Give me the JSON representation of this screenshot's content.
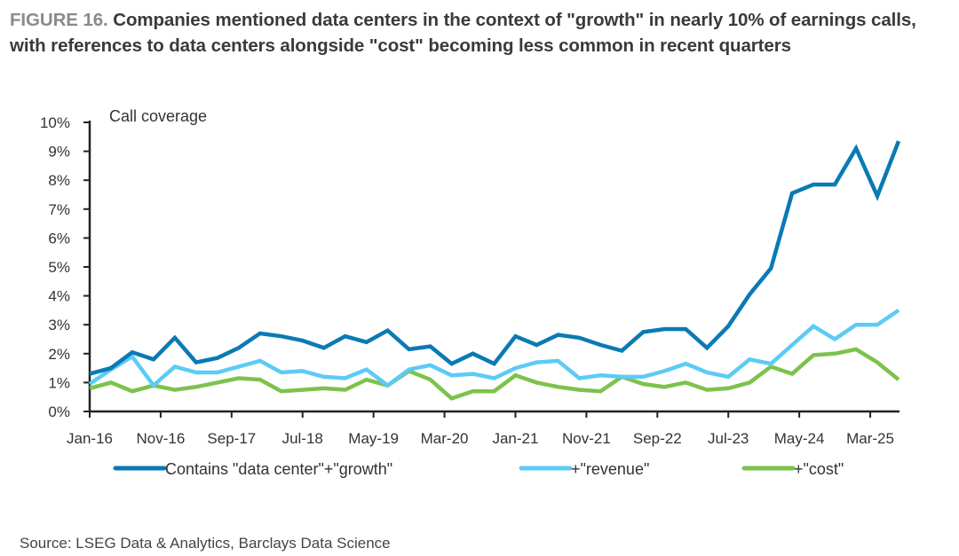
{
  "header": {
    "figure_label": "FIGURE 16.",
    "title": "Companies mentioned data centers in the context of \"growth\" in nearly 10% of earnings calls, with references to data centers alongside \"cost\" becoming less common in recent quarters"
  },
  "footer": {
    "source": "Source: LSEG Data & Analytics, Barclays Data Science"
  },
  "chart_data": {
    "type": "line",
    "title": "Companies mentioned data centers in the context of \"growth\" in nearly 10% of earnings calls, with references to data centers alongside \"cost\" becoming less common in recent quarters",
    "xlabel": "",
    "ylabel": "Call coverage",
    "ylim": [
      0,
      10
    ],
    "y_unit": "%",
    "y_ticks": [
      "0%",
      "1%",
      "2%",
      "3%",
      "4%",
      "5%",
      "6%",
      "7%",
      "8%",
      "9%",
      "10%"
    ],
    "x_tick_labels": [
      "Jan-16",
      "Nov-16",
      "Sep-17",
      "Jul-18",
      "May-19",
      "Mar-20",
      "Jan-21",
      "Nov-21",
      "Sep-22",
      "Jul-23",
      "May-24",
      "Mar-25"
    ],
    "x_frequency": "quarterly",
    "x_start": "Jan-16",
    "x_end": "Jul-25",
    "grid": false,
    "legend_position": "bottom",
    "series": [
      {
        "name": "Contains \"data center\"+\"growth\"",
        "color": "#0a7ab5",
        "values": [
          1.3,
          1.5,
          2.05,
          1.8,
          2.55,
          1.7,
          1.85,
          2.2,
          2.7,
          2.6,
          2.45,
          2.2,
          2.6,
          2.4,
          2.8,
          2.15,
          2.25,
          1.65,
          2.0,
          1.65,
          2.6,
          2.3,
          2.65,
          2.55,
          2.3,
          2.1,
          2.75,
          2.85,
          2.85,
          2.2,
          2.95,
          4.05,
          4.95,
          7.55,
          7.85,
          7.85,
          9.1,
          7.45,
          9.35
        ]
      },
      {
        "name": "+\"revenue\"",
        "color": "#5ccbf5",
        "values": [
          0.95,
          1.45,
          1.9,
          0.9,
          1.55,
          1.35,
          1.35,
          1.55,
          1.75,
          1.35,
          1.4,
          1.2,
          1.15,
          1.45,
          0.9,
          1.45,
          1.6,
          1.25,
          1.3,
          1.15,
          1.5,
          1.7,
          1.75,
          1.15,
          1.25,
          1.2,
          1.2,
          1.4,
          1.65,
          1.35,
          1.2,
          1.8,
          1.65,
          2.3,
          2.95,
          2.5,
          3.0,
          3.0,
          3.5
        ]
      },
      {
        "name": "+\"cost\"",
        "color": "#7dc24b",
        "values": [
          0.8,
          1.0,
          0.7,
          0.9,
          0.75,
          0.85,
          1.0,
          1.15,
          1.1,
          0.7,
          0.75,
          0.8,
          0.75,
          1.1,
          0.9,
          1.4,
          1.1,
          0.45,
          0.7,
          0.7,
          1.25,
          1.0,
          0.85,
          0.75,
          0.7,
          1.2,
          0.95,
          0.85,
          1.0,
          0.75,
          0.8,
          1.0,
          1.55,
          1.3,
          1.95,
          2.0,
          2.15,
          1.7,
          1.1
        ]
      }
    ]
  }
}
